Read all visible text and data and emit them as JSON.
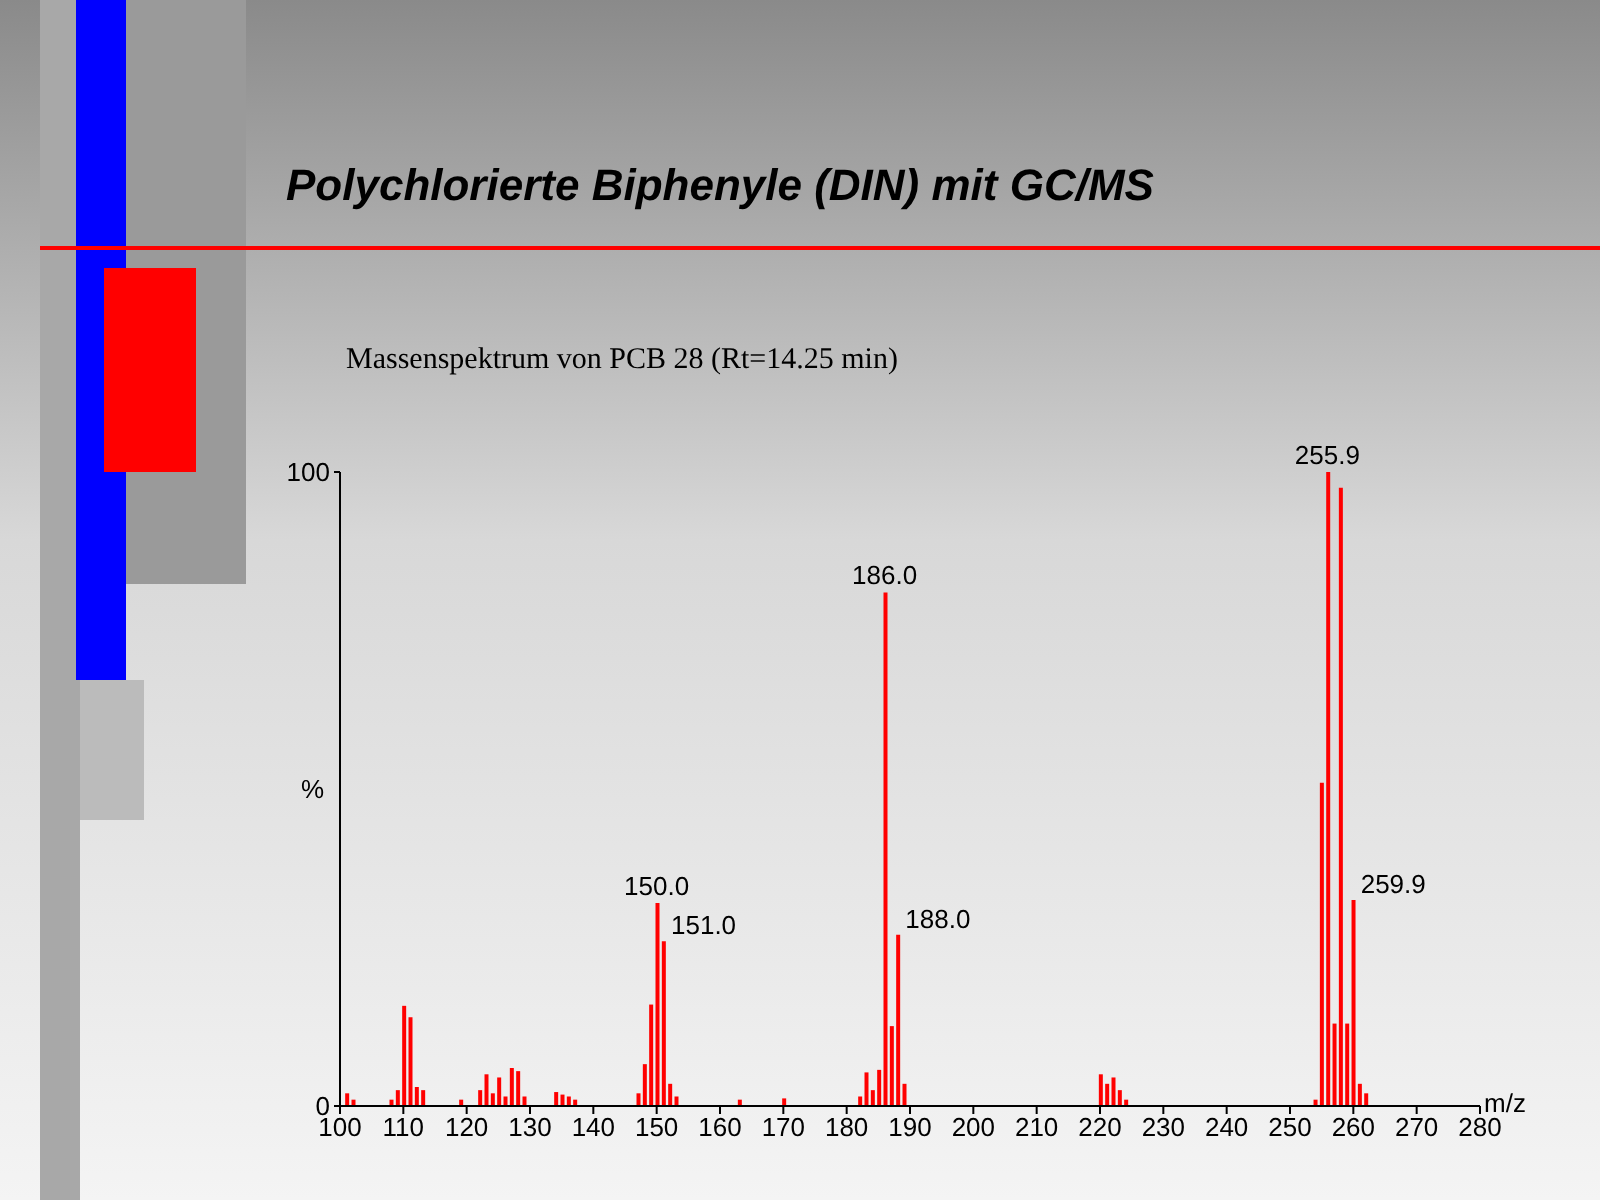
{
  "chart_data": {
    "type": "bar",
    "title": "Polychlorierte Biphenyle (DIN) mit GC/MS",
    "subtitle": "Massenspektrum von PCB 28 (Rt=14.25 min)",
    "xlabel": "m/z",
    "ylabel": "%",
    "x": [
      101,
      102,
      108,
      109,
      110,
      111,
      112,
      113,
      119,
      122,
      123,
      124,
      125,
      126,
      127,
      128,
      129,
      134,
      135,
      136,
      137,
      147,
      148,
      149,
      150,
      151,
      152,
      153,
      163,
      170,
      182,
      183,
      184,
      185,
      186,
      187,
      188,
      189,
      220,
      221,
      222,
      223,
      224,
      253.9,
      254.9,
      255.9,
      256.9,
      257.9,
      258.9,
      259.9,
      260.9,
      261.9
    ],
    "series": [
      {
        "color": "#ff0000",
        "values": [
          2,
          1,
          1,
          2.5,
          15.8,
          14,
          3,
          2.5,
          1,
          2.5,
          5,
          2,
          4.5,
          1.5,
          6,
          5.5,
          1.5,
          2.2,
          1.8,
          1.5,
          1,
          2,
          6.6,
          16,
          32,
          26,
          3.5,
          1.5,
          1,
          1.2,
          1.5,
          5.3,
          2.5,
          5.7,
          81,
          12.6,
          27,
          3.5,
          5,
          3.5,
          4.5,
          2.5,
          1,
          1,
          51,
          100,
          13,
          97.5,
          13,
          32.5,
          3.5,
          2
        ]
      }
    ],
    "xlim": [
      100,
      280
    ],
    "xticks": [
      100,
      110,
      120,
      130,
      140,
      150,
      160,
      170,
      180,
      190,
      200,
      210,
      220,
      230,
      240,
      250,
      260,
      270,
      280
    ],
    "ylim": [
      0,
      100
    ],
    "yticks": [
      0,
      100
    ],
    "annotations": [
      {
        "text": "150.0",
        "x": 150,
        "y": 32
      },
      {
        "text": "151.0",
        "x": 151,
        "y": 26
      },
      {
        "text": "186.0",
        "x": 186,
        "y": 81
      },
      {
        "text": "188.0",
        "x": 188,
        "y": 27
      },
      {
        "text": "255.9",
        "x": 255.9,
        "y": 100
      },
      {
        "text": "259.9",
        "x": 259.9,
        "y": 32.5
      }
    ]
  }
}
